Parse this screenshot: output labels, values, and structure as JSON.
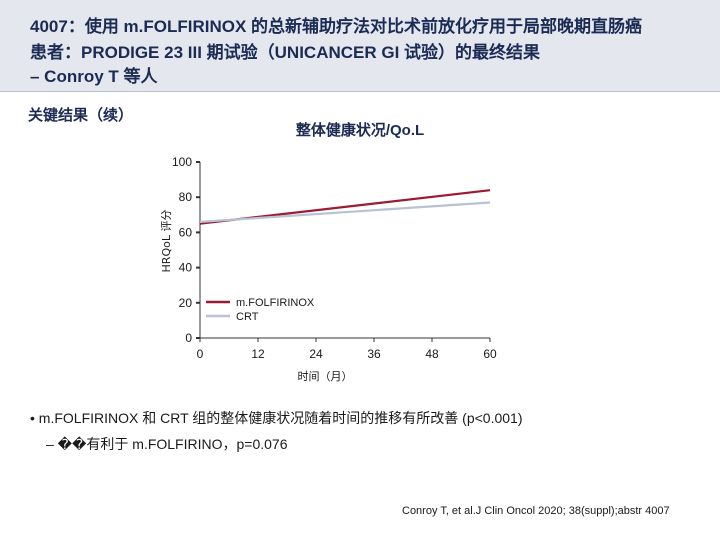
{
  "header": {
    "title_line1": "4007：使用 m.FOLFIRINOX 的总新辅助疗法对比术前放化疗用于局部晚期直肠癌",
    "title_line2": "患者：PRODIGE 23 III 期试验（UNICANCER GI 试验）的最终结果",
    "title_line3": "– Conroy T 等人"
  },
  "section_label": "关键结果（续）",
  "colors": {
    "mfolfirinox": "#9b1b30",
    "crt": "#b8c2d4",
    "header_bg": "#e4e7ee"
  },
  "chart_data": {
    "type": "line",
    "title": "整体健康状况/Qo.L",
    "xlabel": "时间（月）",
    "ylabel": "HRQoL 评分",
    "xlim": [
      0,
      60
    ],
    "ylim": [
      0,
      100
    ],
    "x_ticks": [
      0,
      12,
      24,
      36,
      48,
      60
    ],
    "y_ticks": [
      0,
      20,
      40,
      60,
      80,
      100
    ],
    "legend_position": "lower-left inside plot",
    "series": [
      {
        "name": "m.FOLFIRINOX",
        "color": "#9b1b30",
        "x": [
          0,
          60
        ],
        "y": [
          65,
          84
        ]
      },
      {
        "name": "CRT",
        "color": "#b8c2d4",
        "x": [
          0,
          60
        ],
        "y": [
          66,
          77
        ]
      }
    ]
  },
  "bullets": [
    "•  m.FOLFIRINOX 和 CRT 组的整体健康状况随着时间的推移有所改善 (p<0.001)",
    "–   ��有利于 m.FOLFIRINO，p=0.076"
  ],
  "citation": "Conroy T, et al.J Clin Oncol 2020; 38(suppl);abstr 4007"
}
